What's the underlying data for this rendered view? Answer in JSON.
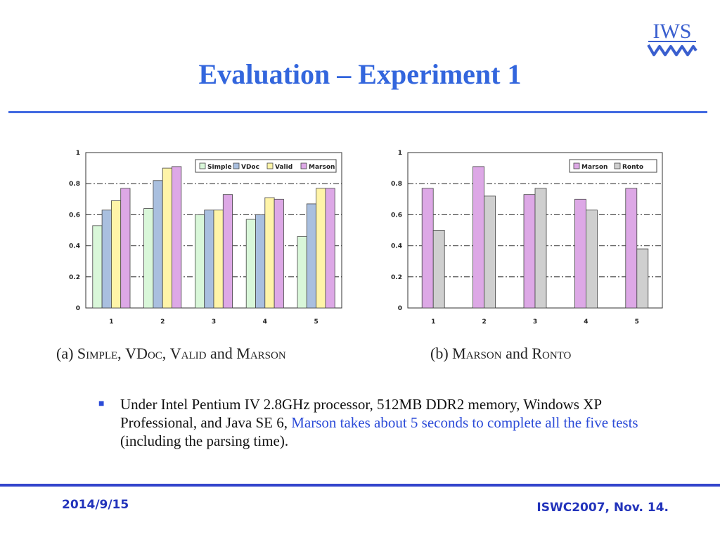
{
  "slide": {
    "title": "Evaluation – Experiment 1",
    "logo_text": "IWS",
    "bullet": {
      "text_plain_1": "Under Intel Pentium IV 2.8GHz processor, 512MB DDR2 memory, Windows XP Professional, and Java SE 6, ",
      "text_highlight": "Marson takes about 5 seconds to complete all the five tests",
      "text_plain_2": " (including the parsing time)."
    },
    "footer_date": "2014/9/15",
    "footer_event": "ISWC2007, Nov. 14."
  },
  "captions": {
    "a_prefix": "(a) ",
    "a_simple": "Simple",
    "a_sep1": ", ",
    "a_vdoc": "VDoc",
    "a_sep2": ", ",
    "a_valid": "Valid",
    "a_and": " and ",
    "a_marson": "Marson",
    "b_prefix": "(b) ",
    "b_marson": "Marson",
    "b_and": " and ",
    "b_ronto": "Ronto"
  },
  "colors": {
    "accent": "#3366dd",
    "simple": "#d9f7d9",
    "vdoc": "#a9bfdf",
    "valid": "#fff4a8",
    "marson": "#dda8e6",
    "ronto": "#cfcfcf"
  },
  "chart_data": [
    {
      "type": "bar",
      "categories": [
        "1",
        "2",
        "3",
        "4",
        "5"
      ],
      "series": [
        {
          "name": "Simple",
          "values": [
            0.53,
            0.64,
            0.6,
            0.57,
            0.46
          ]
        },
        {
          "name": "VDoc",
          "values": [
            0.63,
            0.82,
            0.63,
            0.6,
            0.67
          ]
        },
        {
          "name": "Valid",
          "values": [
            0.69,
            0.9,
            0.63,
            0.71,
            0.77
          ]
        },
        {
          "name": "Marson",
          "values": [
            0.77,
            0.91,
            0.73,
            0.7,
            0.77
          ]
        }
      ],
      "ylim": [
        0,
        1
      ],
      "yticks": [
        "0",
        "0.2",
        "0.4",
        "0.6",
        "0.8",
        "1"
      ],
      "grid": "dash-dot horizontal",
      "legend_position": "top-right"
    },
    {
      "type": "bar",
      "categories": [
        "1",
        "2",
        "3",
        "4",
        "5"
      ],
      "series": [
        {
          "name": "Marson",
          "values": [
            0.77,
            0.91,
            0.73,
            0.7,
            0.77
          ]
        },
        {
          "name": "Ronto",
          "values": [
            0.5,
            0.72,
            0.77,
            0.63,
            0.38
          ]
        }
      ],
      "ylim": [
        0,
        1
      ],
      "yticks": [
        "0",
        "0.2",
        "0.4",
        "0.6",
        "0.8",
        "1"
      ],
      "grid": "dash-dot horizontal",
      "legend_position": "top-right"
    }
  ]
}
